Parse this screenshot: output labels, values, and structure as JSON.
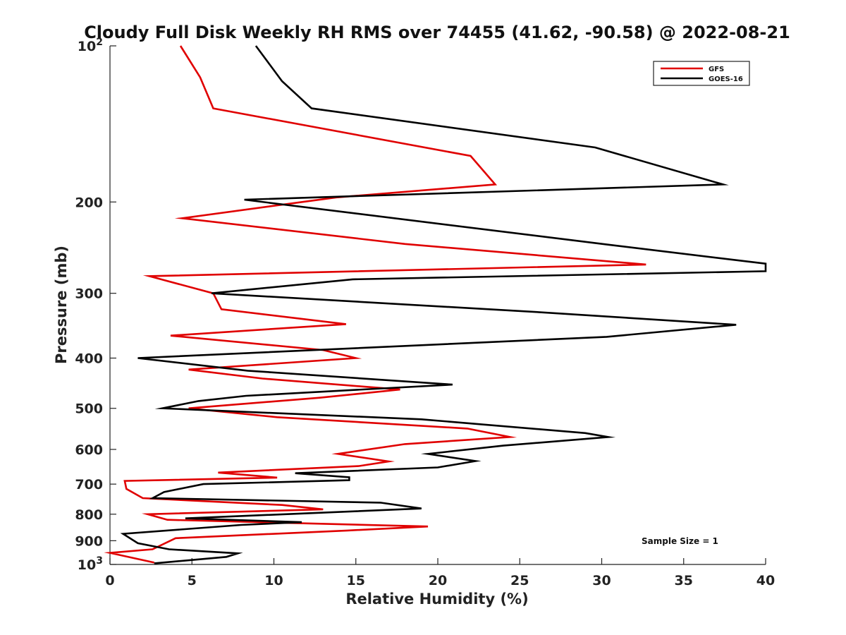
{
  "chart_data": {
    "type": "line",
    "title": "Cloudy Full Disk Weekly RH RMS over 74455 (41.62, -90.58) @ 2022-08-21",
    "xlabel": "Relative Humidity (%)",
    "ylabel": "Pressure (mb)",
    "xlim": [
      0,
      40
    ],
    "ylim": [
      100,
      1000
    ],
    "y_scale": "log",
    "y_reversed": true,
    "xticks": [
      "0",
      "5",
      "10",
      "15",
      "20",
      "25",
      "30",
      "35",
      "40"
    ],
    "yticks": [
      {
        "value": 100,
        "base": "10",
        "exp": "2"
      },
      {
        "value": 200,
        "label": "200"
      },
      {
        "value": 300,
        "label": "300"
      },
      {
        "value": 400,
        "label": "400"
      },
      {
        "value": 500,
        "label": "500"
      },
      {
        "value": 600,
        "label": "600"
      },
      {
        "value": 700,
        "label": "700"
      },
      {
        "value": 800,
        "label": "800"
      },
      {
        "value": 900,
        "label": "900"
      },
      {
        "value": 1000,
        "base": "10",
        "exp": "3"
      }
    ],
    "grid": false,
    "legend_position": "top-right",
    "annotation": "Sample Size = 1",
    "series": [
      {
        "name": "GFS",
        "color": "#e00000",
        "points": [
          [
            4.3,
            100
          ],
          [
            5.5,
            115
          ],
          [
            6.3,
            132
          ],
          [
            22.0,
            163
          ],
          [
            23.5,
            185
          ],
          [
            13.8,
            196
          ],
          [
            4.4,
            215
          ],
          [
            18.0,
            241
          ],
          [
            32.7,
            264
          ],
          [
            2.4,
            278
          ],
          [
            6.3,
            300
          ],
          [
            6.8,
            322
          ],
          [
            14.4,
            344
          ],
          [
            3.7,
            362
          ],
          [
            13.0,
            386
          ],
          [
            15.0,
            400
          ],
          [
            4.8,
            421
          ],
          [
            9.3,
            438
          ],
          [
            17.7,
            460
          ],
          [
            12.8,
            477
          ],
          [
            4.8,
            500
          ],
          [
            10.2,
            520
          ],
          [
            21.8,
            547
          ],
          [
            24.4,
            568
          ],
          [
            18.0,
            586
          ],
          [
            13.9,
            612
          ],
          [
            17.0,
            633
          ],
          [
            15.2,
            646
          ],
          [
            6.6,
            665
          ],
          [
            10.2,
            680
          ],
          [
            0.9,
            690
          ],
          [
            1.0,
            715
          ],
          [
            2.0,
            745
          ],
          [
            10.5,
            768
          ],
          [
            13.0,
            783
          ],
          [
            2.3,
            800
          ],
          [
            3.5,
            820
          ],
          [
            19.4,
            845
          ],
          [
            14.5,
            860
          ],
          [
            4.0,
            890
          ],
          [
            2.6,
            935
          ],
          [
            0.0,
            950
          ],
          [
            2.7,
            992
          ]
        ]
      },
      {
        "name": "GOES-16",
        "color": "#000000",
        "points": [
          [
            8.9,
            100
          ],
          [
            10.5,
            117
          ],
          [
            12.3,
            132
          ],
          [
            29.6,
            157
          ],
          [
            37.4,
            185
          ],
          [
            8.2,
            198
          ],
          [
            30.5,
            242
          ],
          [
            40.0,
            263
          ],
          [
            40.0,
            272
          ],
          [
            14.8,
            282
          ],
          [
            6.2,
            300
          ],
          [
            26.0,
            326
          ],
          [
            38.2,
            345
          ],
          [
            30.3,
            364
          ],
          [
            1.7,
            400
          ],
          [
            8.4,
            423
          ],
          [
            20.9,
            450
          ],
          [
            8.3,
            473
          ],
          [
            5.4,
            484
          ],
          [
            3.2,
            500
          ],
          [
            19.0,
            525
          ],
          [
            29.0,
            558
          ],
          [
            30.4,
            568
          ],
          [
            24.0,
            590
          ],
          [
            19.4,
            612
          ],
          [
            22.3,
            632
          ],
          [
            20.0,
            650
          ],
          [
            11.3,
            667
          ],
          [
            14.6,
            679
          ],
          [
            14.6,
            688
          ],
          [
            5.7,
            700
          ],
          [
            3.3,
            725
          ],
          [
            2.6,
            745
          ],
          [
            16.5,
            760
          ],
          [
            19.0,
            780
          ],
          [
            4.6,
            815
          ],
          [
            11.7,
            829
          ],
          [
            8.0,
            839
          ],
          [
            0.8,
            873
          ],
          [
            1.7,
            910
          ],
          [
            3.6,
            935
          ],
          [
            7.8,
            952
          ],
          [
            7.1,
            967
          ],
          [
            2.7,
            995
          ]
        ]
      }
    ]
  }
}
